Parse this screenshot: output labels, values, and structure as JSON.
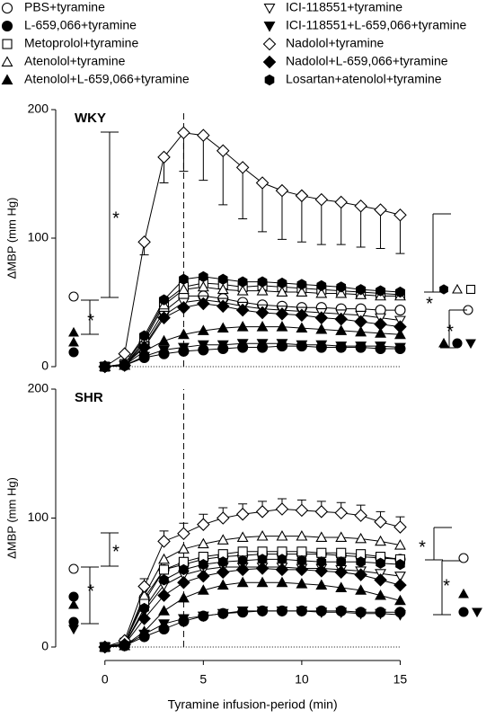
{
  "chart_data": [
    {
      "type": "line",
      "panel_label": "WKY",
      "ylabel": "ΔMBP (mm Hg)",
      "x": [
        0,
        1,
        2,
        3,
        4,
        5,
        6,
        7,
        8,
        9,
        10,
        11,
        12,
        13,
        14,
        15
      ],
      "xlim": [
        -2.5,
        20
      ],
      "ylim": [
        0,
        200
      ],
      "yticks": [
        0,
        100,
        200
      ],
      "vline": 4,
      "significance": [
        "*",
        "*",
        "*",
        "*"
      ],
      "series": [
        {
          "name": "PBS+tyramine",
          "marker": "circle-open",
          "values": [
            0,
            1,
            18,
            43,
            55,
            55,
            53,
            50,
            48,
            47,
            46,
            46,
            45,
            45,
            44,
            44
          ]
        },
        {
          "name": "L-659,066+tyramine",
          "marker": "circle-filled",
          "values": [
            0,
            1,
            7,
            10,
            12,
            13,
            14,
            15,
            15,
            16,
            16,
            15,
            15,
            15,
            14,
            14
          ]
        },
        {
          "name": "Metoprolol+tyramine",
          "marker": "square-open",
          "values": [
            0,
            2,
            22,
            50,
            62,
            65,
            64,
            62,
            63,
            62,
            61,
            60,
            59,
            58,
            57,
            56
          ]
        },
        {
          "name": "Atenolol+tyramine",
          "marker": "triangle-up-open",
          "values": [
            0,
            1,
            20,
            48,
            60,
            62,
            60,
            59,
            59,
            58,
            58,
            57,
            57,
            56,
            55,
            55
          ]
        },
        {
          "name": "Atenolol+L-659,066+tyramine",
          "marker": "triangle-up-filled",
          "values": [
            0,
            1,
            12,
            20,
            25,
            28,
            30,
            31,
            31,
            31,
            30,
            29,
            28,
            27,
            26,
            25
          ]
        },
        {
          "name": "ICI-118551+tyramine",
          "marker": "triangle-down-open",
          "values": [
            0,
            1,
            16,
            40,
            50,
            52,
            50,
            47,
            45,
            44,
            43,
            42,
            41,
            40,
            38,
            36
          ]
        },
        {
          "name": "ICI-118551+L-659,066+tyramine",
          "marker": "triangle-down-filled",
          "values": [
            0,
            1,
            8,
            13,
            15,
            17,
            17,
            18,
            18,
            18,
            17,
            17,
            16,
            16,
            16,
            15
          ]
        },
        {
          "name": "Nadolol+tyramine",
          "marker": "diamond-open",
          "values": [
            0,
            10,
            97,
            163,
            182,
            180,
            168,
            155,
            143,
            137,
            133,
            130,
            128,
            125,
            122,
            118
          ],
          "errors": [
            0,
            2,
            10,
            20,
            30,
            35,
            42,
            40,
            38,
            38,
            36,
            35,
            33,
            32,
            30,
            30
          ]
        },
        {
          "name": "Nadolol+L-659,066+tyramine",
          "marker": "diamond-filled",
          "values": [
            0,
            1,
            15,
            38,
            46,
            49,
            47,
            44,
            42,
            41,
            40,
            38,
            37,
            35,
            33,
            31
          ]
        },
        {
          "name": "Losartan+atenolol+tyramine",
          "marker": "hexagon-filled",
          "values": [
            0,
            2,
            24,
            52,
            68,
            70,
            68,
            66,
            66,
            65,
            64,
            63,
            62,
            60,
            59,
            58
          ]
        }
      ]
    },
    {
      "type": "line",
      "panel_label": "SHR",
      "ylabel": "ΔMBP (mm Hg)",
      "xlabel": "Tyramine infusion-period (min)",
      "x": [
        0,
        1,
        2,
        3,
        4,
        5,
        6,
        7,
        8,
        9,
        10,
        11,
        12,
        13,
        14,
        15
      ],
      "xlim": [
        -2.5,
        20
      ],
      "ylim": [
        0,
        200
      ],
      "yticks": [
        0,
        100,
        200
      ],
      "xticks": [
        0,
        5,
        10,
        15
      ],
      "vline": 4,
      "significance": [
        "*",
        "*",
        "*",
        "*"
      ],
      "series": [
        {
          "values": [
            0,
            2,
            38,
            60,
            64,
            68,
            70,
            71,
            72,
            72,
            72,
            72,
            71,
            70,
            69,
            68
          ]
        },
        {
          "values": [
            0,
            1,
            8,
            14,
            20,
            24,
            26,
            27,
            28,
            28,
            28,
            28,
            28,
            27,
            27,
            27
          ]
        },
        {
          "values": [
            0,
            3,
            35,
            60,
            66,
            70,
            72,
            74,
            74,
            74,
            74,
            73,
            73,
            72,
            70,
            68
          ]
        },
        {
          "values": [
            0,
            3,
            40,
            68,
            76,
            80,
            83,
            85,
            86,
            86,
            86,
            85,
            85,
            84,
            82,
            79
          ]
        },
        {
          "values": [
            0,
            1,
            12,
            28,
            38,
            44,
            48,
            50,
            50,
            50,
            49,
            48,
            46,
            44,
            40,
            36
          ]
        },
        {
          "values": [
            0,
            2,
            28,
            48,
            56,
            60,
            62,
            62,
            62,
            62,
            61,
            61,
            60,
            59,
            57,
            55
          ]
        },
        {
          "values": [
            0,
            1,
            10,
            18,
            22,
            24,
            26,
            28,
            28,
            28,
            28,
            27,
            27,
            26,
            26,
            25
          ]
        },
        {
          "values": [
            0,
            5,
            47,
            82,
            88,
            95,
            100,
            103,
            105,
            107,
            106,
            105,
            104,
            102,
            97,
            93
          ],
          "errors": [
            0,
            2,
            6,
            8,
            8,
            8,
            8,
            8,
            8,
            8,
            8,
            8,
            8,
            8,
            8,
            8
          ]
        },
        {
          "values": [
            0,
            2,
            22,
            40,
            50,
            55,
            58,
            60,
            61,
            60,
            60,
            59,
            58,
            56,
            52,
            48
          ]
        },
        {
          "values": [
            0,
            2,
            30,
            52,
            60,
            64,
            66,
            67,
            68,
            68,
            67,
            66,
            66,
            66,
            65,
            64
          ]
        }
      ]
    }
  ]
}
